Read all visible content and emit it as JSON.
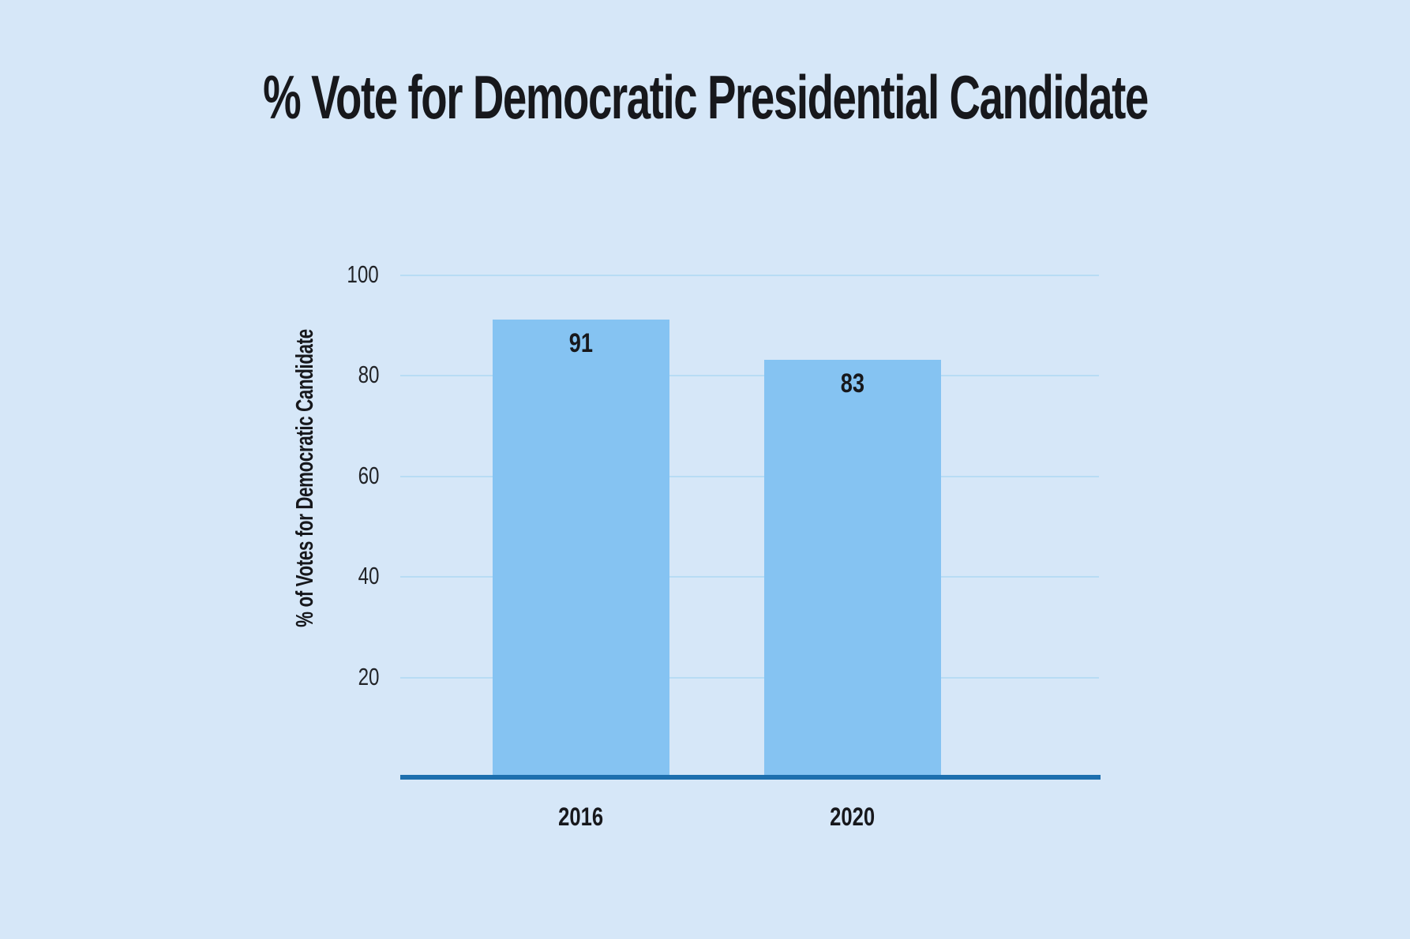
{
  "chart_data": {
    "type": "bar",
    "title": "% Vote for Democratic Presidential Candidate",
    "xlabel": "",
    "ylabel": "% of Votes for Democratic Candidate",
    "categories": [
      "2016",
      "2020"
    ],
    "values": [
      91,
      83
    ],
    "bar_value_labels": [
      "91",
      "83"
    ],
    "ylim": [
      0,
      100
    ],
    "yticks": [
      100,
      80,
      60,
      40,
      20
    ],
    "grid": true,
    "legend": "none",
    "colors": {
      "background": "#d6e7f8",
      "bar": "#85c3f2",
      "gridline": "#b8dcf4",
      "axis_line": "#1d6fae",
      "text": "#17181c"
    }
  }
}
